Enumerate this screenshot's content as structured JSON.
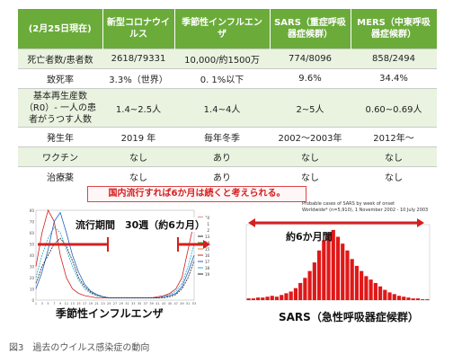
{
  "table": {
    "header": [
      "(2月25日現在)",
      "新型コロナウイルス",
      "季節性インフルエンザ",
      "SARS（重症呼吸器症候群）",
      "MERS（中東呼吸器症候群）"
    ],
    "rows": [
      {
        "label": "死亡者数/患者数",
        "cells": [
          "2618/79331",
          "10,000/約1500万",
          "774/8096",
          "858/2494"
        ]
      },
      {
        "label": "致死率",
        "cells": [
          "3.3%（世界）",
          "0. 1%以下",
          "9.6%",
          "34.4%"
        ]
      },
      {
        "label": "基本再生産数（R0）- 一人の患者がうつす人数",
        "cells": [
          "1.4~2.5人",
          "1.4~4人",
          "2~5人",
          "0.60~0.69人"
        ]
      },
      {
        "label": "発生年",
        "cells": [
          "2019 年",
          "毎年冬季",
          "2002〜2003年",
          "2012年〜"
        ]
      },
      {
        "label": "ワクチン",
        "cells": [
          "なし",
          "あり",
          "なし",
          "なし"
        ]
      },
      {
        "label": "治療薬",
        "cells": [
          "なし",
          "あり",
          "なし",
          "なし"
        ]
      }
    ]
  },
  "banner": "国内流行すれば6か月は続くと考えられる。",
  "left_chart": {
    "period_label": "流行期間　30週（約6カ月）",
    "title": "季節性インフルエンザ",
    "x_ticks": [
      "1",
      "3",
      "5",
      "7",
      "9",
      "11",
      "13",
      "15",
      "17",
      "19",
      "21",
      "23",
      "25",
      "27",
      "29",
      "31",
      "33",
      "35",
      "37",
      "39",
      "41",
      "43",
      "45",
      "47",
      "49",
      "51",
      "53"
    ],
    "y_ticks": [
      "0",
      "10",
      "20",
      "30",
      "40",
      "50",
      "60",
      "70",
      "80"
    ],
    "legend": [
      "10",
      "11",
      "12",
      "13",
      "14",
      "15",
      "16",
      "17",
      "18",
      "19"
    ],
    "colors": {
      "red": "#d42020",
      "blue": "#2060c0",
      "cyan": "#20a8c8",
      "black": "#222222",
      "green": "#40a040",
      "orange": "#e08020"
    }
  },
  "right_chart": {
    "header_line1": "Probable cases of SARS by week of onset",
    "header_line2": "Worldwide* (n=5,910), 1 November 2002 - 10 July 2003",
    "period_label": "約6か月間",
    "title": "SARS（急性呼吸器症候群）",
    "bar_color": "#e01818",
    "arrow_color": "#d42020"
  },
  "figure_caption": "図3　過去のウイルス感染症の動向"
}
